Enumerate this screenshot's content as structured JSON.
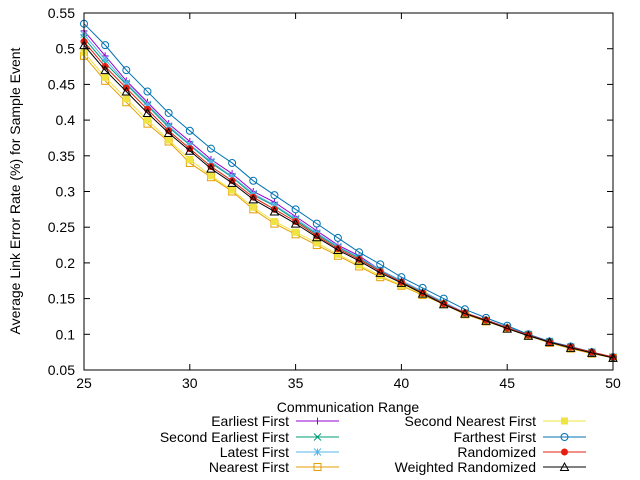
{
  "chart_data": {
    "type": "line",
    "title": "",
    "xlabel": "Communication Range",
    "ylabel": "Average Link Error Rate (%) for Sample Event",
    "xlim": [
      25,
      50
    ],
    "ylim": [
      0.05,
      0.55
    ],
    "xticks": [
      25,
      30,
      35,
      40,
      45,
      50
    ],
    "yticks": [
      0.05,
      0.1,
      0.15,
      0.2,
      0.25,
      0.3,
      0.35,
      0.4,
      0.45,
      0.5,
      0.55
    ],
    "grid": false,
    "legend_position": "bottom",
    "x": [
      25,
      26,
      27,
      28,
      29,
      30,
      31,
      32,
      33,
      34,
      35,
      36,
      37,
      38,
      39,
      40,
      41,
      42,
      43,
      44,
      45,
      46,
      47,
      48,
      49,
      50
    ],
    "series": [
      {
        "name": "Earliest First",
        "color": "#9400d3",
        "marker": "plus",
        "values": [
          0.525,
          0.49,
          0.455,
          0.425,
          0.395,
          0.37,
          0.345,
          0.325,
          0.3,
          0.285,
          0.265,
          0.245,
          0.225,
          0.21,
          0.19,
          0.175,
          0.16,
          0.145,
          0.13,
          0.12,
          0.11,
          0.1,
          0.09,
          0.082,
          0.075,
          0.068
        ]
      },
      {
        "name": "Second Earliest First",
        "color": "#009e73",
        "marker": "cross",
        "values": [
          0.515,
          0.48,
          0.45,
          0.42,
          0.39,
          0.365,
          0.34,
          0.32,
          0.295,
          0.28,
          0.26,
          0.24,
          0.222,
          0.207,
          0.189,
          0.174,
          0.159,
          0.144,
          0.13,
          0.12,
          0.109,
          0.099,
          0.09,
          0.082,
          0.075,
          0.068
        ]
      },
      {
        "name": "Latest First",
        "color": "#56b4e9",
        "marker": "star",
        "values": [
          0.52,
          0.485,
          0.452,
          0.422,
          0.392,
          0.366,
          0.342,
          0.321,
          0.297,
          0.281,
          0.262,
          0.242,
          0.223,
          0.208,
          0.19,
          0.175,
          0.16,
          0.145,
          0.13,
          0.12,
          0.11,
          0.1,
          0.09,
          0.082,
          0.075,
          0.068
        ]
      },
      {
        "name": "Nearest First",
        "color": "#e69f00",
        "marker": "square-open",
        "values": [
          0.49,
          0.455,
          0.425,
          0.395,
          0.37,
          0.34,
          0.32,
          0.3,
          0.275,
          0.255,
          0.24,
          0.225,
          0.21,
          0.195,
          0.18,
          0.168,
          0.155,
          0.142,
          0.128,
          0.118,
          0.108,
          0.098,
          0.088,
          0.08,
          0.073,
          0.067
        ]
      },
      {
        "name": "Second Nearest First",
        "color": "#f0e442",
        "marker": "square-filled",
        "values": [
          0.495,
          0.46,
          0.43,
          0.4,
          0.372,
          0.345,
          0.322,
          0.302,
          0.278,
          0.258,
          0.243,
          0.228,
          0.212,
          0.197,
          0.182,
          0.169,
          0.156,
          0.143,
          0.129,
          0.119,
          0.108,
          0.098,
          0.089,
          0.081,
          0.074,
          0.067
        ]
      },
      {
        "name": "Farthest First",
        "color": "#0072b2",
        "marker": "circle-open",
        "values": [
          0.535,
          0.505,
          0.47,
          0.44,
          0.41,
          0.385,
          0.36,
          0.34,
          0.315,
          0.295,
          0.275,
          0.255,
          0.235,
          0.215,
          0.198,
          0.18,
          0.165,
          0.15,
          0.135,
          0.123,
          0.112,
          0.1,
          0.09,
          0.083,
          0.075,
          0.068
        ]
      },
      {
        "name": "Randomized",
        "color": "#e51e10",
        "marker": "circle-filled",
        "values": [
          0.51,
          0.475,
          0.445,
          0.415,
          0.385,
          0.36,
          0.335,
          0.315,
          0.292,
          0.275,
          0.258,
          0.238,
          0.22,
          0.205,
          0.188,
          0.173,
          0.158,
          0.143,
          0.13,
          0.12,
          0.109,
          0.099,
          0.089,
          0.082,
          0.075,
          0.068
        ]
      },
      {
        "name": "Weighted Randomized",
        "color": "#000000",
        "marker": "triangle-open",
        "values": [
          0.505,
          0.47,
          0.44,
          0.41,
          0.382,
          0.357,
          0.332,
          0.312,
          0.289,
          0.272,
          0.255,
          0.236,
          0.218,
          0.203,
          0.186,
          0.172,
          0.157,
          0.142,
          0.129,
          0.119,
          0.108,
          0.098,
          0.089,
          0.081,
          0.074,
          0.067
        ]
      }
    ]
  }
}
